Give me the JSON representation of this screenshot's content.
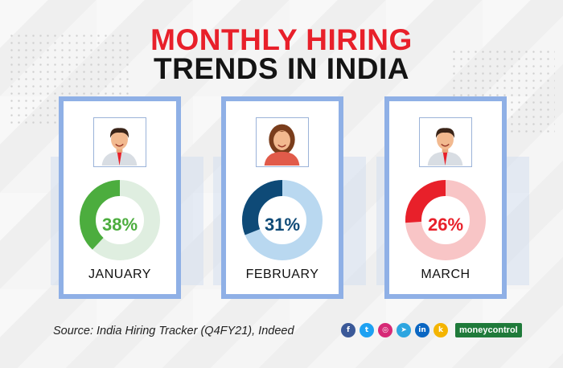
{
  "title": {
    "line1": "MONTHLY HIRING",
    "line2": "TRENDS IN INDIA"
  },
  "chart_data": {
    "type": "pie",
    "series": [
      {
        "name": "JANUARY",
        "value": 38,
        "label": "38%",
        "color": "#4cad3e",
        "track": "#dfeee0",
        "person": "male"
      },
      {
        "name": "FEBRUARY",
        "value": 31,
        "label": "31%",
        "color": "#0e4a77",
        "track": "#b9d8f0",
        "person": "female"
      },
      {
        "name": "MARCH",
        "value": 26,
        "label": "26%",
        "color": "#e8202a",
        "track": "#f8c5c6",
        "person": "male"
      }
    ]
  },
  "source": "Source: India Hiring Tracker (Q4FY21), Indeed",
  "social": [
    {
      "icon": "facebook-icon",
      "glyph": "f",
      "color": "#3b5998"
    },
    {
      "icon": "twitter-icon",
      "glyph": "t",
      "color": "#1da1f2"
    },
    {
      "icon": "instagram-icon",
      "glyph": "◎",
      "color": "#d62976"
    },
    {
      "icon": "telegram-icon",
      "glyph": "➤",
      "color": "#2ca5e0"
    },
    {
      "icon": "linkedin-icon",
      "glyph": "in",
      "color": "#0a66c2"
    },
    {
      "icon": "koo-icon",
      "glyph": "k",
      "color": "#f4b400"
    }
  ],
  "brand": "moneycontrol"
}
